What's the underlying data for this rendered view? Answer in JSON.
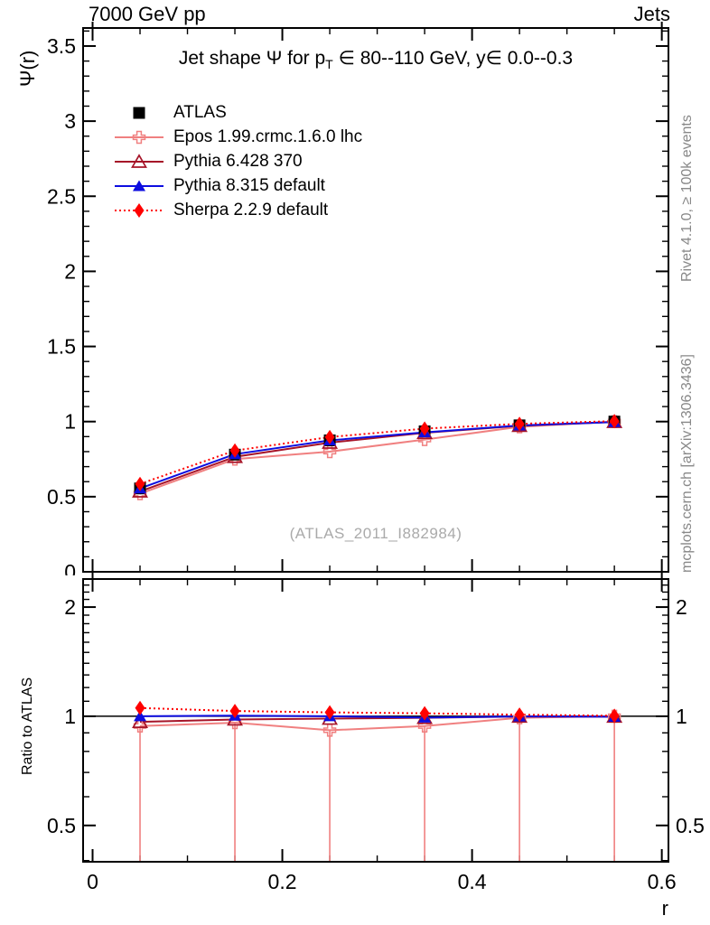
{
  "header": {
    "left": "7000 GeV pp",
    "right": "Jets"
  },
  "plot_title": {
    "pre": "Jet shape Ψ for p",
    "sub": "T",
    "post": " ∈ 80--110 GeV, y∈ 0.0--0.3"
  },
  "axes": {
    "main_ylabel": "Ψ(r)",
    "ratio_ylabel": "Ratio to ATLAS",
    "xlabel": "r"
  },
  "side_notes": {
    "top": "Rivet 4.1.0, ≥ 100k events",
    "bottom": "mcplots.cern.ch [arXiv:1306.3436]"
  },
  "watermark": "(ATLAS_2011_I882984)",
  "legend": {
    "items": [
      {
        "label": "ATLAS",
        "series": "atlas"
      },
      {
        "label": "Epos 1.99.crmc.1.6.0 lhc",
        "series": "epos"
      },
      {
        "label": "Pythia 6.428 370",
        "series": "pythia6"
      },
      {
        "label": "Pythia 8.315 default",
        "series": "pythia8"
      },
      {
        "label": "Sherpa 2.2.9 default",
        "series": "sherpa"
      }
    ]
  },
  "chart_data": {
    "type": "line",
    "title": "Jet shape Ψ for p_T ∈ 80--110 GeV, y∈ 0.0--0.3",
    "xlabel": "r",
    "x": [
      0.05,
      0.15,
      0.25,
      0.35,
      0.45,
      0.55
    ],
    "x_axis": {
      "lim": [
        -0.01,
        0.607
      ],
      "major_ticks": [
        0,
        0.2,
        0.4,
        0.6
      ],
      "major_labels": [
        "0",
        "0.2",
        "0.4",
        "0.6"
      ],
      "minor_step": 0.05
    },
    "main_panel": {
      "ylabel": "Ψ(r)",
      "yscale": "linear",
      "ylim": [
        0,
        3.62
      ],
      "major_ticks": [
        0.5,
        1,
        1.5,
        2,
        2.5,
        3,
        3.5
      ],
      "major_labels": [
        "0.5",
        "1",
        "1.5",
        "2",
        "2.5",
        "3",
        "3.5"
      ],
      "zero_label": "0",
      "minor_step": 0.1,
      "grid": false
    },
    "ratio_panel": {
      "ylabel": "Ratio to ATLAS",
      "yscale": "log",
      "ylim": [
        0.397,
        2.39
      ],
      "major_ticks": [
        0.5,
        1,
        2
      ],
      "major_labels": [
        "0.5",
        "1",
        "2"
      ],
      "minor_ticks": [
        0.4,
        0.6,
        0.7,
        0.8,
        0.9,
        1.1,
        1.2,
        1.3,
        1.4,
        1.5,
        1.6,
        1.7,
        1.8,
        1.9,
        2.1,
        2.2,
        2.3
      ],
      "reference_line": 1
    },
    "series": [
      {
        "id": "atlas",
        "name": "ATLAS",
        "color": "#000000",
        "marker": "square-filled",
        "line": "none",
        "values": [
          0.555,
          0.78,
          0.875,
          0.935,
          0.975,
          1.0
        ]
      },
      {
        "id": "epos",
        "name": "Epos 1.99.crmc.1.6.0 lhc",
        "color": "#f08080",
        "marker": "cross-open",
        "line": "solid",
        "values": [
          0.52,
          0.75,
          0.8,
          0.88,
          0.965,
          1.0
        ],
        "ratio": [
          0.94,
          0.96,
          0.915,
          0.94,
          0.99,
          1.0
        ],
        "ratio_err_low_to_axis": true
      },
      {
        "id": "pythia6",
        "name": "Pythia 6.428 370",
        "color": "#a61428",
        "marker": "triangle-open",
        "line": "solid",
        "values": [
          0.535,
          0.765,
          0.86,
          0.925,
          0.972,
          0.998
        ],
        "ratio": [
          0.965,
          0.98,
          0.985,
          0.99,
          0.998,
          0.998
        ]
      },
      {
        "id": "pythia8",
        "name": "Pythia 8.315 default",
        "color": "#0d0de0",
        "marker": "triangle-filled",
        "line": "solid",
        "values": [
          0.555,
          0.783,
          0.875,
          0.928,
          0.974,
          0.997
        ],
        "ratio": [
          1.0,
          1.004,
          1.0,
          0.992,
          0.999,
          0.997
        ]
      },
      {
        "id": "sherpa",
        "name": "Sherpa 2.2.9 default",
        "color": "#ff0000",
        "marker": "diamond-filled",
        "line": "dotted",
        "values": [
          0.585,
          0.807,
          0.897,
          0.953,
          0.985,
          1.003
        ],
        "ratio": [
          1.054,
          1.034,
          1.025,
          1.019,
          1.01,
          1.003
        ]
      }
    ]
  }
}
